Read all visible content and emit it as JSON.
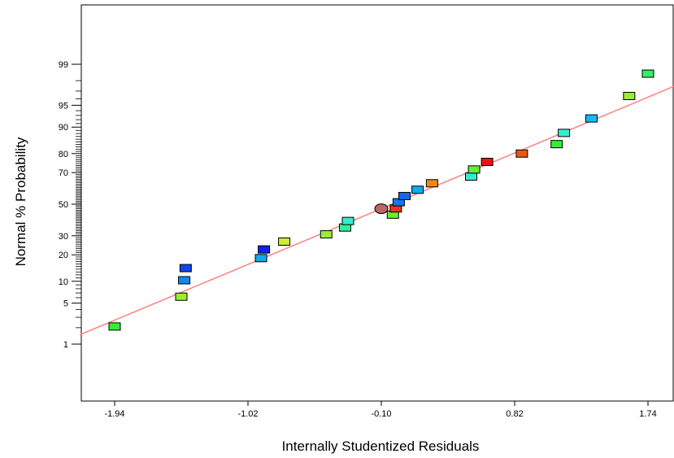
{
  "chart_data": {
    "type": "scatter",
    "xlabel": "Internally Studentized Residuals",
    "ylabel": "Normal % Probability",
    "x_ticks": [
      -1.94,
      -1.02,
      -0.1,
      0.82,
      1.74
    ],
    "x_tick_labels": [
      "-1.94",
      "-1.02",
      "-0.10",
      "0.82",
      "1.74"
    ],
    "y_ticks": [
      1,
      5,
      10,
      20,
      30,
      50,
      70,
      80,
      90,
      95,
      99
    ],
    "y_tick_labels": [
      "1",
      "5",
      "10",
      "20",
      "30",
      "50",
      "70",
      "80",
      "90",
      "95",
      "99"
    ],
    "xlim": [
      -2.18,
      1.92
    ],
    "y_scale": "normal probability",
    "grid": false,
    "fit_line": {
      "color": "#ff8080",
      "points": [
        [
          -2.18,
          1.5
        ],
        [
          1.92,
          97.5
        ]
      ]
    },
    "points": [
      {
        "x": -1.94,
        "y": 2.1,
        "color": "#33ee33"
      },
      {
        "x": -1.48,
        "y": 6.2,
        "color": "#99ee33"
      },
      {
        "x": -1.46,
        "y": 10.3,
        "color": "#1188ee"
      },
      {
        "x": -1.45,
        "y": 14.4,
        "color": "#1144ee"
      },
      {
        "x": -0.93,
        "y": 18.5,
        "color": "#11aaee"
      },
      {
        "x": -0.91,
        "y": 22.6,
        "color": "#1122ee"
      },
      {
        "x": -0.77,
        "y": 26.7,
        "color": "#ccee33"
      },
      {
        "x": -0.48,
        "y": 30.8,
        "color": "#99ee33"
      },
      {
        "x": -0.35,
        "y": 34.9,
        "color": "#33ee99"
      },
      {
        "x": -0.33,
        "y": 39.0,
        "color": "#33eecc"
      },
      {
        "x": -0.1,
        "y": 47.0,
        "color": "#bb6666",
        "shape": "ellipse"
      },
      {
        "x": -0.02,
        "y": 43.1,
        "color": "#66ee33"
      },
      {
        "x": -0.0,
        "y": 47.2,
        "color": "#ee3311"
      },
      {
        "x": 0.02,
        "y": 51.3,
        "color": "#1177ee"
      },
      {
        "x": 0.06,
        "y": 55.4,
        "color": "#1166ee"
      },
      {
        "x": 0.15,
        "y": 59.5,
        "color": "#11aaee"
      },
      {
        "x": 0.25,
        "y": 63.6,
        "color": "#ee8811"
      },
      {
        "x": 0.52,
        "y": 67.7,
        "color": "#33eecc"
      },
      {
        "x": 0.54,
        "y": 71.8,
        "color": "#66ee33"
      },
      {
        "x": 0.63,
        "y": 75.9,
        "color": "#ee1111"
      },
      {
        "x": 0.87,
        "y": 80.0,
        "color": "#ee5511"
      },
      {
        "x": 1.11,
        "y": 84.1,
        "color": "#33ee33"
      },
      {
        "x": 1.16,
        "y": 88.2,
        "color": "#33eecc"
      },
      {
        "x": 1.35,
        "y": 92.3,
        "color": "#11bbee"
      },
      {
        "x": 1.61,
        "y": 96.4,
        "color": "#99ee33"
      },
      {
        "x": 1.74,
        "y": 98.5,
        "color": "#33ee66"
      }
    ]
  }
}
